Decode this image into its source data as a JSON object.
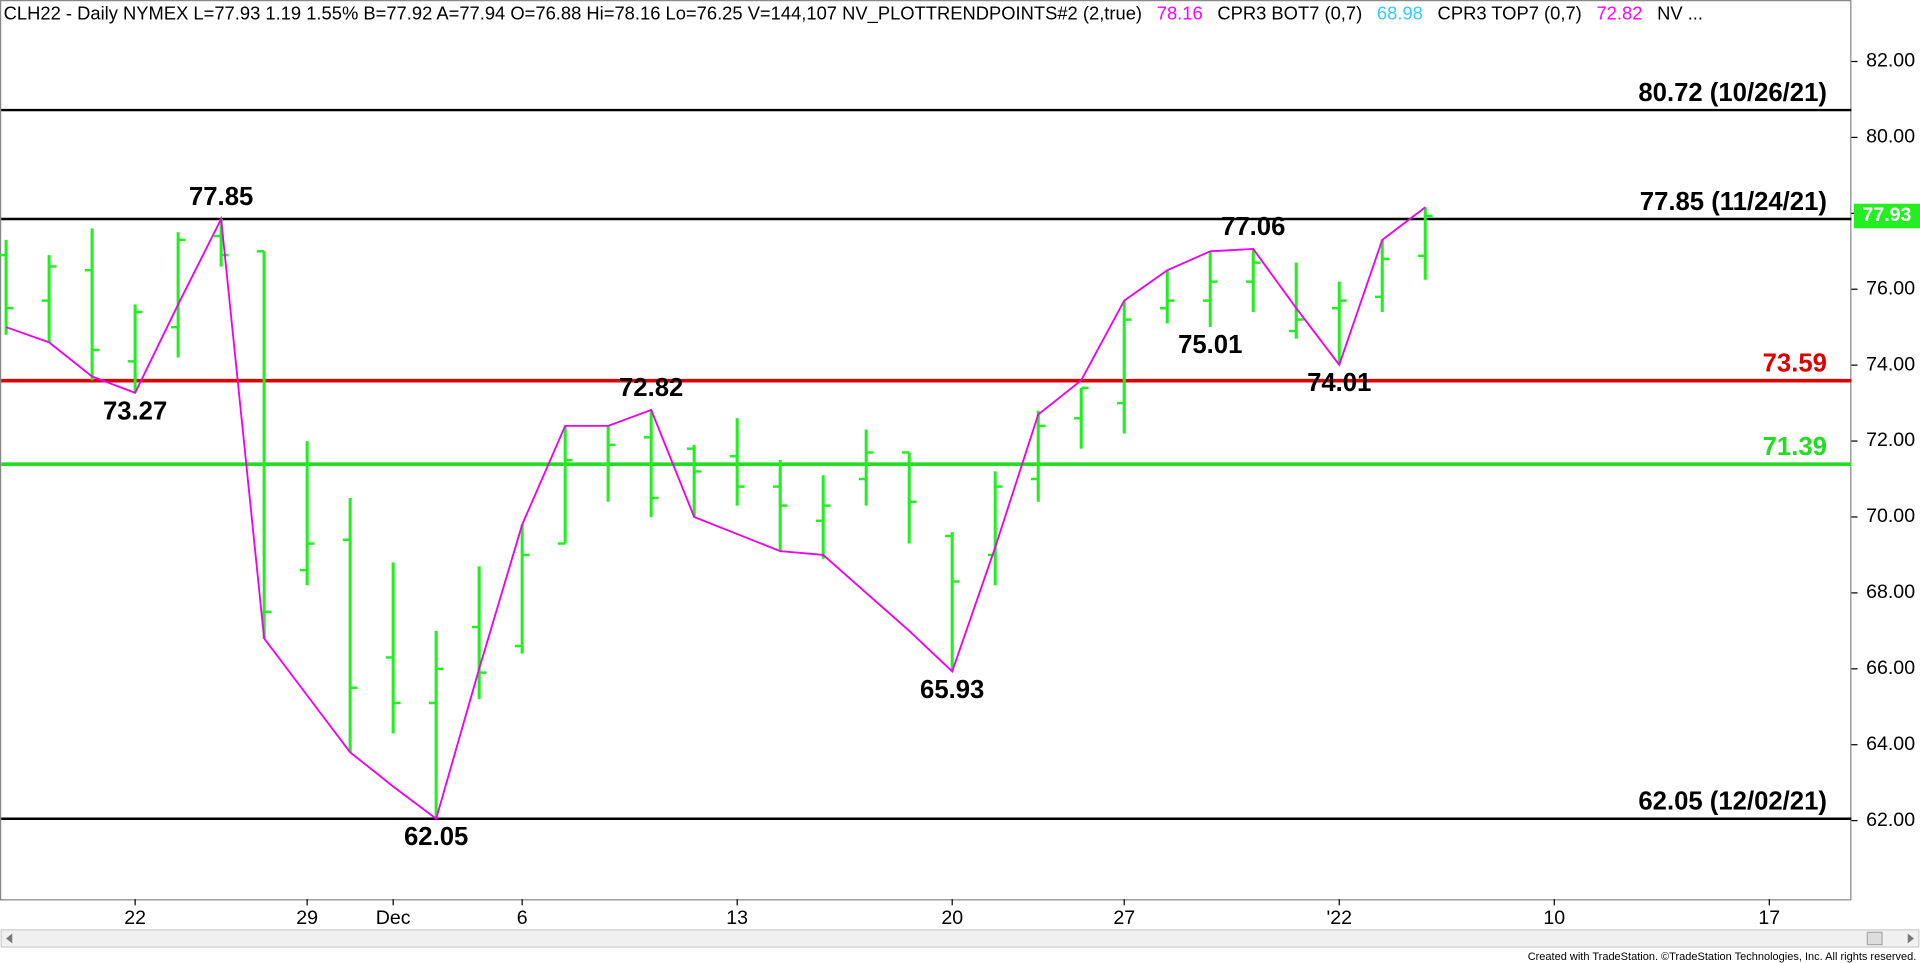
{
  "chart_data": {
    "type": "ohlc",
    "header": [
      {
        "text": "CLH22 - Daily  NYMEX  L=77.93  1.19   1.55%   B=77.92  A=77.94  O=76.88  Hi=78.16  Lo=76.25  V=144,107  NV_PLOTTRENDPOINTS#2 (2,true)",
        "color": "#000000"
      },
      {
        "text": "78.16",
        "color": "#ff00ff"
      },
      {
        "text": "CPR3 BOT7 (0,7)",
        "color": "#000000"
      },
      {
        "text": "68.98",
        "color": "#33ccff"
      },
      {
        "text": "CPR3 TOP7 (0,7)",
        "color": "#000000"
      },
      {
        "text": "72.82",
        "color": "#ff00ff"
      },
      {
        "text": "NV ...",
        "color": "#000000"
      }
    ],
    "categories": [
      null,
      null,
      null,
      "22",
      null,
      null,
      null,
      "29",
      null,
      "Dec",
      null,
      null,
      "6",
      null,
      null,
      null,
      null,
      "13",
      null,
      null,
      null,
      null,
      "20",
      null,
      null,
      null,
      "27",
      null,
      null,
      null,
      null,
      "'22",
      null,
      null,
      null,
      null,
      "10",
      null,
      null,
      null,
      null,
      "17",
      null
    ],
    "open": [
      76.9,
      75.7,
      76.5,
      74.1,
      75.0,
      77.4,
      77.0,
      68.6,
      69.4,
      66.3,
      65.1,
      67.1,
      66.6,
      69.3,
      71.4,
      72.1,
      71.8,
      71.6,
      70.8,
      69.9,
      71.0,
      71.7,
      69.5,
      69.0,
      71.0,
      72.6,
      73.0,
      75.5,
      75.7,
      76.2,
      74.9,
      75.5,
      75.8,
      76.88,
      null,
      null,
      null,
      null,
      null,
      null,
      null,
      null,
      null
    ],
    "high": [
      77.3,
      76.9,
      77.6,
      75.6,
      77.5,
      77.85,
      77.0,
      72.0,
      70.5,
      68.8,
      67.0,
      68.7,
      69.8,
      72.4,
      72.4,
      72.82,
      71.9,
      72.6,
      71.5,
      71.1,
      72.3,
      71.7,
      69.6,
      71.2,
      72.8,
      73.4,
      75.7,
      76.5,
      77.0,
      77.06,
      76.7,
      76.2,
      77.3,
      78.16,
      null,
      null,
      null,
      null,
      null,
      null,
      null,
      null,
      null
    ],
    "low": [
      74.8,
      74.6,
      73.6,
      73.27,
      74.2,
      76.6,
      66.8,
      68.2,
      63.8,
      64.3,
      62.05,
      65.2,
      66.4,
      69.3,
      70.4,
      70.0,
      70.0,
      70.3,
      69.1,
      68.9,
      70.3,
      69.3,
      65.93,
      68.2,
      70.4,
      71.8,
      72.2,
      75.1,
      75.01,
      75.4,
      74.7,
      74.01,
      75.4,
      76.25,
      null,
      null,
      null,
      null,
      null,
      null,
      null,
      null,
      null
    ],
    "close": [
      75.5,
      76.6,
      74.4,
      75.4,
      77.3,
      76.9,
      67.5,
      69.3,
      65.5,
      65.1,
      66.0,
      65.9,
      69.0,
      71.5,
      71.9,
      70.5,
      71.2,
      70.8,
      70.3,
      70.3,
      71.7,
      70.4,
      68.3,
      70.8,
      72.4,
      73.4,
      75.2,
      75.7,
      76.2,
      76.7,
      75.2,
      75.7,
      76.8,
      77.93,
      null,
      null,
      null,
      null,
      null,
      null,
      null,
      null,
      null
    ],
    "bar_color": "#22ee22",
    "trend": {
      "color": "#ee00ee",
      "values": [
        75.0,
        74.6,
        73.7,
        73.27,
        75.6,
        77.85,
        66.8,
        65.3,
        63.8,
        62.9,
        62.05,
        66.0,
        69.8,
        72.4,
        72.4,
        72.82,
        70.0,
        69.55,
        69.1,
        69.0,
        68.0,
        67.0,
        65.93,
        69.2,
        72.7,
        73.6,
        75.7,
        76.5,
        77.0,
        77.06,
        75.5,
        74.01,
        77.3,
        78.16,
        null,
        null,
        null,
        null,
        null,
        null,
        null,
        null,
        null
      ]
    },
    "levels": [
      {
        "value": 80.72,
        "label": "80.72 (10/26/21)",
        "color": "#000000"
      },
      {
        "value": 77.85,
        "label": "77.85 (11/24/21)",
        "color": "#000000"
      },
      {
        "value": 73.59,
        "color": "#dd0000"
      },
      {
        "value": 71.39,
        "color": "#22dd22"
      },
      {
        "value": 62.05,
        "label": "62.05 (12/02/21)",
        "color": "#000000"
      }
    ],
    "pivot_labels": [
      77.85,
      73.27,
      62.05,
      72.82,
      65.93,
      75.01,
      77.06,
      74.01
    ],
    "last_color": "#22ee22",
    "ylim": [
      59.93,
      83.62
    ],
    "yticks": [
      {
        "value": 62,
        "label": "62.00"
      },
      {
        "value": 64,
        "label": "64.00"
      },
      {
        "value": 66,
        "label": "66.00"
      },
      {
        "value": 68,
        "label": "68.00"
      },
      {
        "value": 70,
        "label": "70.00"
      },
      {
        "value": 72,
        "label": "72.00"
      },
      {
        "value": 74,
        "label": "74.00"
      },
      {
        "value": 76,
        "label": "76.00"
      },
      {
        "value": 78,
        "label": "78.00"
      },
      {
        "value": 80,
        "label": "80.00"
      },
      {
        "value": 82,
        "label": "82.00"
      }
    ],
    "footer": "Created with TradeStation. ©TradeStation Technologies, Inc. All rights reserved."
  }
}
